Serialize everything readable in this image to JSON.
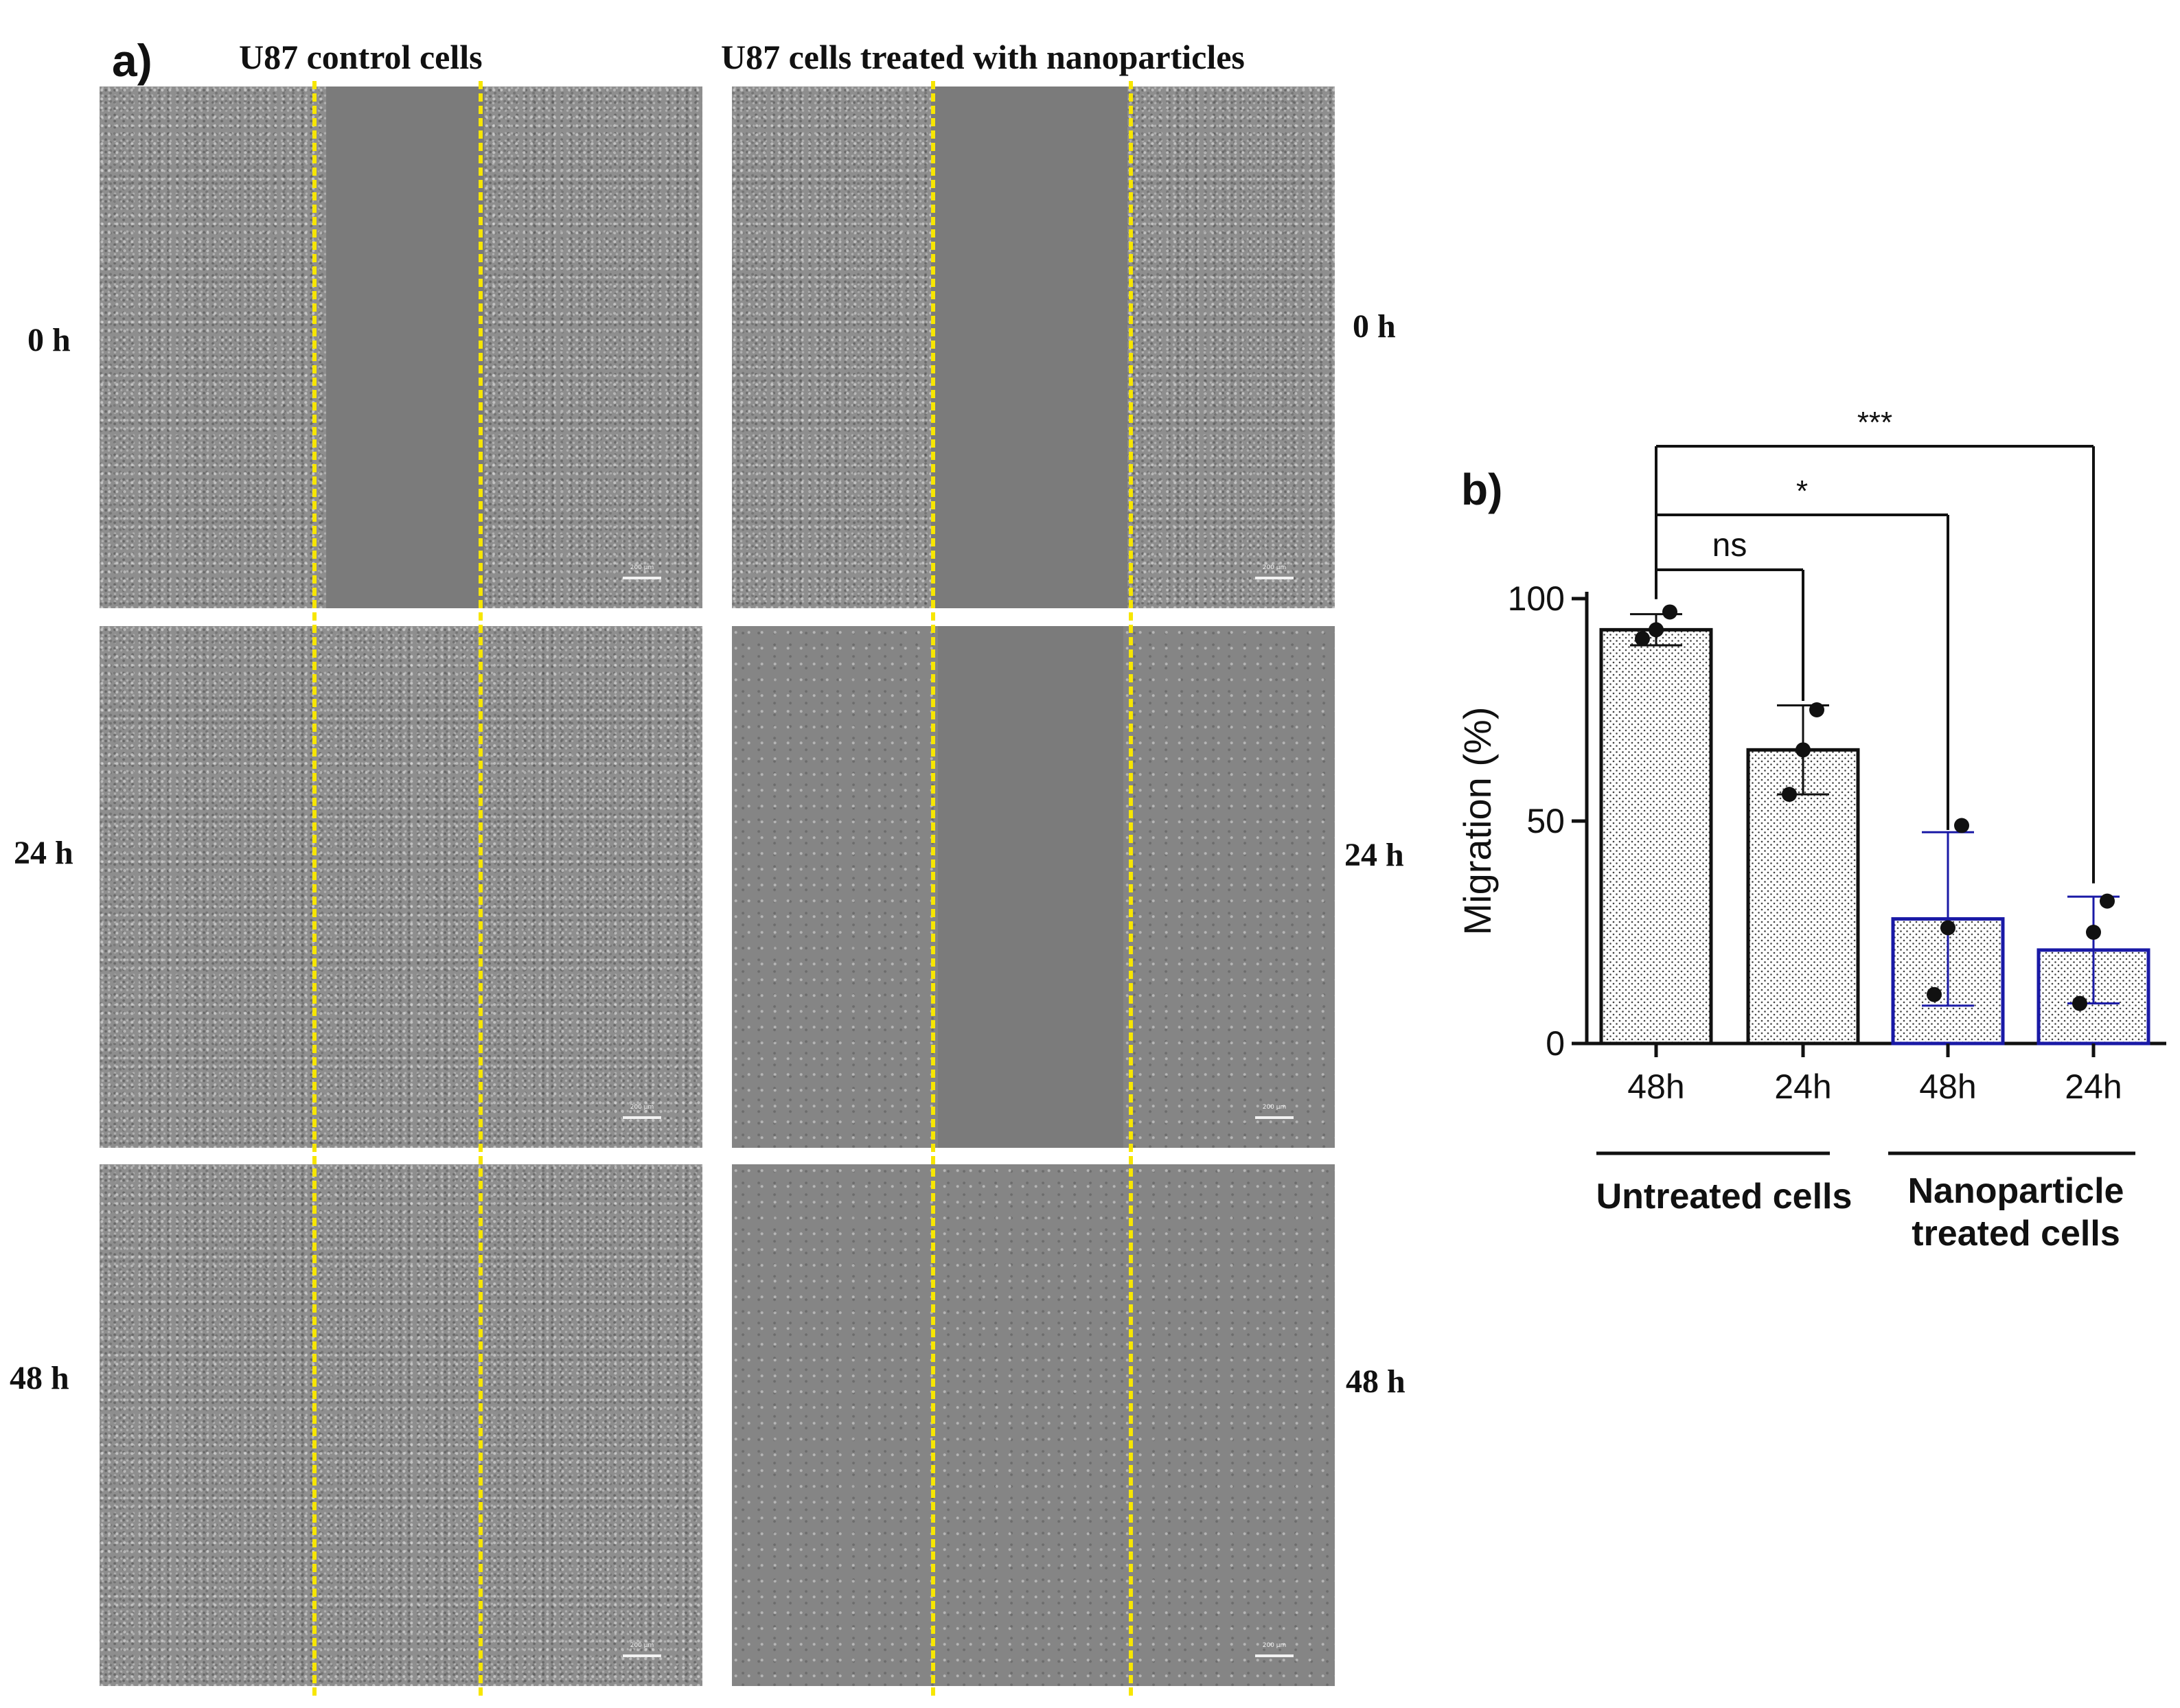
{
  "panel_a": {
    "letter": "a)",
    "col_titles": [
      "U87 control cells",
      "U87 cells treated with nanoparticles"
    ],
    "rows": [
      {
        "label": "0 h"
      },
      {
        "label": "24 h"
      },
      {
        "label": "48 h"
      }
    ],
    "scale_bar_label": "200 µm",
    "guide_line_color": "#f7e600"
  },
  "panel_b": {
    "letter": "b)"
  },
  "chart_data": {
    "type": "bar",
    "ylabel": "Migration (%)",
    "xlabel": "",
    "ylim": [
      0,
      100
    ],
    "yticks": [
      0,
      50,
      100
    ],
    "categories": [
      "48h",
      "24h",
      "48h",
      "24h"
    ],
    "values": [
      93,
      66,
      28,
      21
    ],
    "error": [
      3.5,
      10,
      19.5,
      12
    ],
    "points": [
      [
        91,
        97,
        93
      ],
      [
        56,
        75,
        66
      ],
      [
        11,
        49,
        26
      ],
      [
        9,
        32,
        25
      ]
    ],
    "bar_edge_colors": [
      "#111111",
      "#111111",
      "#1a1aa6",
      "#1a1aa6"
    ],
    "groups": [
      {
        "label": "Untreated cells",
        "bars": [
          0,
          1
        ]
      },
      {
        "label": "Nanoparticle treated cells",
        "lines": [
          "Nanoparticle",
          "treated cells"
        ],
        "bars": [
          2,
          3
        ]
      }
    ],
    "comparisons": [
      {
        "from": 0,
        "to": 1,
        "label": "ns"
      },
      {
        "from": 0,
        "to": 2,
        "label": "*"
      },
      {
        "from": 0,
        "to": 3,
        "label": "***"
      }
    ]
  }
}
